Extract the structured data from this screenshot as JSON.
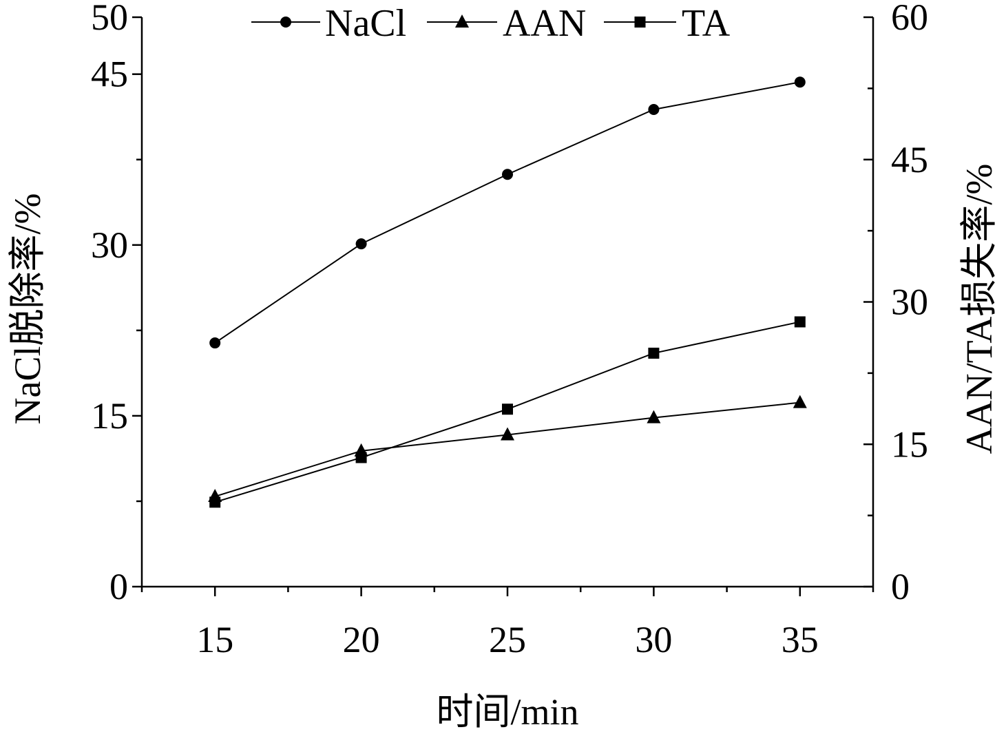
{
  "chart_data": {
    "type": "line",
    "x": [
      15,
      20,
      25,
      30,
      35
    ],
    "xlabel": "时间/min",
    "xlim": [
      12.5,
      37.5
    ],
    "x_ticks": [
      "15",
      "20",
      "25",
      "30",
      "35"
    ],
    "ylabel_left": "NaCl脱除率/%",
    "ylim_left": [
      0,
      50
    ],
    "y_ticks_left": [
      "0",
      "15",
      "30",
      "45",
      "50"
    ],
    "ylabel_right": "AAN/TA损失率/%",
    "ylim_right": [
      0,
      60
    ],
    "y_ticks_right": [
      "0",
      "15",
      "30",
      "45",
      "60"
    ],
    "legend_position": "top",
    "series": [
      {
        "name": "NaCl",
        "axis": "left",
        "marker": "circle",
        "values": [
          21.4,
          30.1,
          36.2,
          41.9,
          44.3
        ]
      },
      {
        "name": "AAN",
        "axis": "right",
        "marker": "triangle",
        "values": [
          9.5,
          14.3,
          16.0,
          17.8,
          19.4
        ]
      },
      {
        "name": "TA",
        "axis": "right",
        "marker": "square",
        "values": [
          8.9,
          13.6,
          18.7,
          24.6,
          27.9
        ]
      }
    ]
  }
}
